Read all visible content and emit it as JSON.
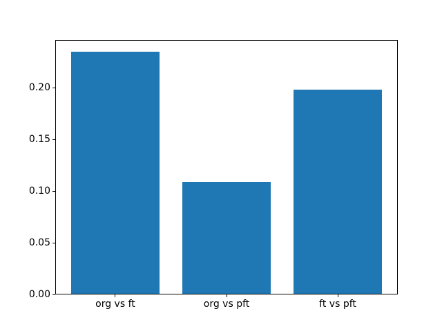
{
  "chart_data": {
    "type": "bar",
    "categories": [
      "org vs ft",
      "org vs pft",
      "ft vs pft"
    ],
    "values": [
      0.236,
      0.109,
      0.199
    ],
    "title": "",
    "xlabel": "",
    "ylabel": "",
    "ylim": [
      0,
      0.2465
    ],
    "xlim": [
      -0.54,
      2.54
    ],
    "bar_width": 0.8,
    "yticks": [
      0,
      0.05,
      0.1,
      0.15,
      0.2
    ],
    "ytick_labels": [
      "0.00",
      "0.05",
      "0.10",
      "0.15",
      "0.20"
    ],
    "bar_color": "#1f77b4",
    "axis_color": "#000000",
    "background_color": "#ffffff",
    "grid": false,
    "legend": false
  }
}
